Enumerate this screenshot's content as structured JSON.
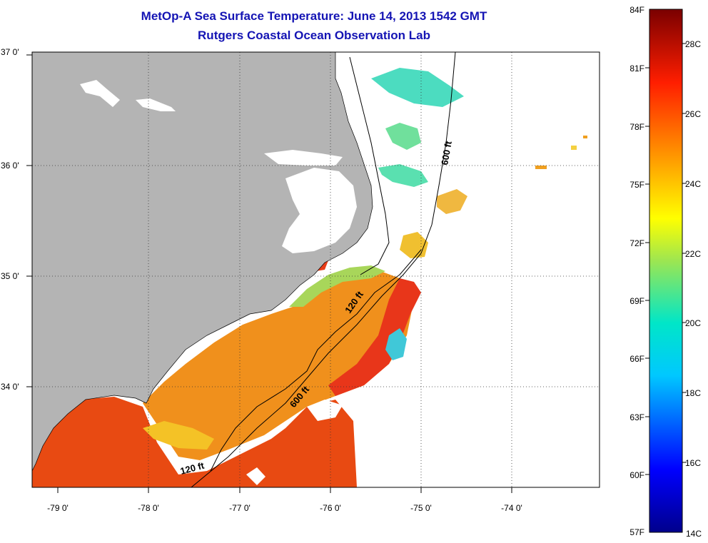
{
  "title": "MetOp-A Sea Surface Temperature:  June 14, 2013 1542 GMT",
  "subtitle": "Rutgers Coastal Ocean Observation Lab",
  "map": {
    "lat_labels": [
      "37 0'",
      "36 0'",
      "35 0'",
      "34 0'"
    ],
    "lon_labels": [
      "-79 0'",
      "-78 0'",
      "-77 0'",
      "-76 0'",
      "-75 0'",
      "-74 0'"
    ],
    "contour_labels": [
      "600 ft",
      "120 ft",
      "600 ft",
      "120 ft"
    ],
    "colors": {
      "land": "#b4b4b4",
      "water_nodata": "#ffffff",
      "warm": "#e83c10",
      "mid": "#f08a18"
    }
  },
  "colorbar": {
    "f_labels": [
      "84F",
      "81F",
      "78F",
      "75F",
      "72F",
      "69F",
      "66F",
      "63F",
      "60F",
      "57F"
    ],
    "c_labels": [
      "28C",
      "26C",
      "24C",
      "22C",
      "20C",
      "18C",
      "16C",
      "14C"
    ]
  }
}
